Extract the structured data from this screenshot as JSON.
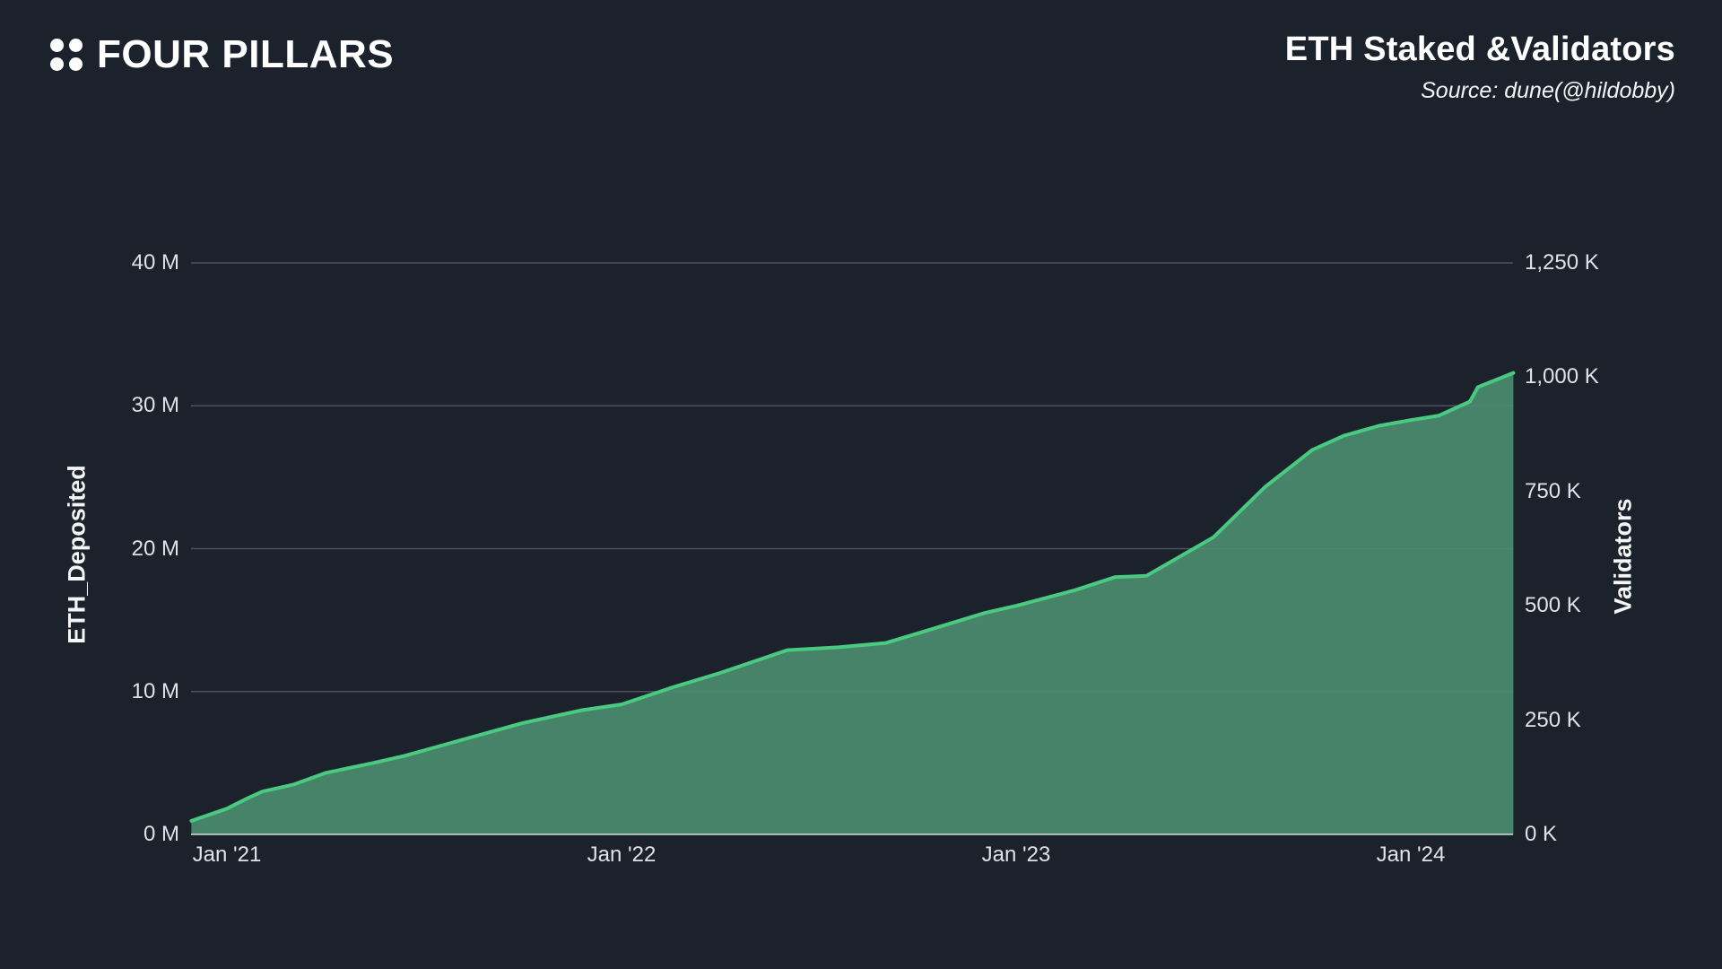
{
  "header": {
    "logo_text": "FOUR PILLARS",
    "title": "ETH Staked &Validators",
    "source": "Source: dune(@hildobby)"
  },
  "chart_data": {
    "type": "area",
    "title": "ETH Staked &Validators",
    "source": "Source: dune(@hildobby)",
    "grid": true,
    "legend": "none",
    "left_axis": {
      "title": "ETH_Deposited",
      "unit": "M",
      "range": [
        0,
        40
      ],
      "ticks": [
        {
          "label": "0 M",
          "value": 0
        },
        {
          "label": "10 M",
          "value": 10
        },
        {
          "label": "20 M",
          "value": 20
        },
        {
          "label": "30 M",
          "value": 30
        },
        {
          "label": "40 M",
          "value": 40
        }
      ]
    },
    "right_axis": {
      "title": "Validators",
      "unit": "K",
      "range": [
        0,
        1250
      ],
      "ticks": [
        {
          "label": "0 K",
          "value": 0
        },
        {
          "label": "250 K",
          "value": 250
        },
        {
          "label": "500 K",
          "value": 500
        },
        {
          "label": "750 K",
          "value": 750
        },
        {
          "label": "1,000 K",
          "value": 1000
        },
        {
          "label": "1,250 K",
          "value": 1250
        }
      ]
    },
    "x_axis": {
      "range_year": [
        2020.905,
        2024.27
      ],
      "ticks": [
        {
          "label": "Jan '21",
          "year": 2021
        },
        {
          "label": "Jan '22",
          "year": 2022
        },
        {
          "label": "Jan '23",
          "year": 2023
        },
        {
          "label": "Jan '24",
          "year": 2024
        }
      ]
    },
    "series": [
      {
        "name": "ETH_Deposited",
        "unit": "M ETH",
        "x_year": [
          2020.91,
          2021.0,
          2021.05,
          2021.09,
          2021.17,
          2021.25,
          2021.37,
          2021.45,
          2021.58,
          2021.75,
          2021.9,
          2022.0,
          2022.13,
          2022.25,
          2022.42,
          2022.55,
          2022.67,
          2022.79,
          2022.92,
          2023.0,
          2023.15,
          2023.25,
          2023.33,
          2023.5,
          2023.63,
          2023.75,
          2023.83,
          2023.92,
          2024.0,
          2024.07,
          2024.15,
          2024.17,
          2024.26
        ],
        "values_m": [
          0.95,
          1.8,
          2.5,
          3.0,
          3.5,
          4.3,
          5.0,
          5.5,
          6.5,
          7.8,
          8.7,
          9.1,
          10.3,
          11.3,
          12.9,
          13.1,
          13.4,
          14.4,
          15.5,
          16.0,
          17.1,
          18.0,
          18.1,
          20.8,
          24.3,
          26.9,
          27.9,
          28.6,
          29.0,
          29.3,
          30.3,
          31.3,
          32.3
        ]
      }
    ],
    "colors": {
      "background": "#1c222c",
      "line": "#4ac981",
      "fill": "#4d8e6f",
      "grid": "rgba(255,255,255,0.22)",
      "baseline": "rgba(255,255,255,0.6)",
      "tick_text": "#dfe2e6",
      "title_text": "#ffffff"
    }
  }
}
